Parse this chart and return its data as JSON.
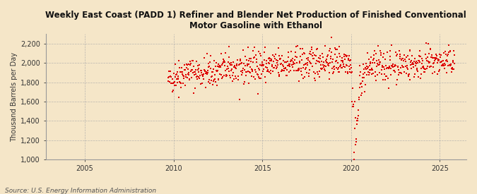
{
  "title": "Weekly East Coast (PADD 1) Refiner and Blender Net Production of Finished Conventional\nMotor Gasoline with Ethanol",
  "ylabel": "Thousand Barrels per Day",
  "source": "Source: U.S. Energy Information Administration",
  "background_color": "#f5e6c8",
  "plot_bg_color": "#f5e6c8",
  "data_color": "#dd0000",
  "xlim_start": 2002.8,
  "xlim_end": 2026.5,
  "ylim": [
    1000,
    2300
  ],
  "yticks": [
    1000,
    1200,
    1400,
    1600,
    1800,
    2000,
    2200
  ],
  "xticks": [
    2005,
    2010,
    2015,
    2020,
    2025
  ],
  "marker_size": 2.0,
  "seed": 42
}
